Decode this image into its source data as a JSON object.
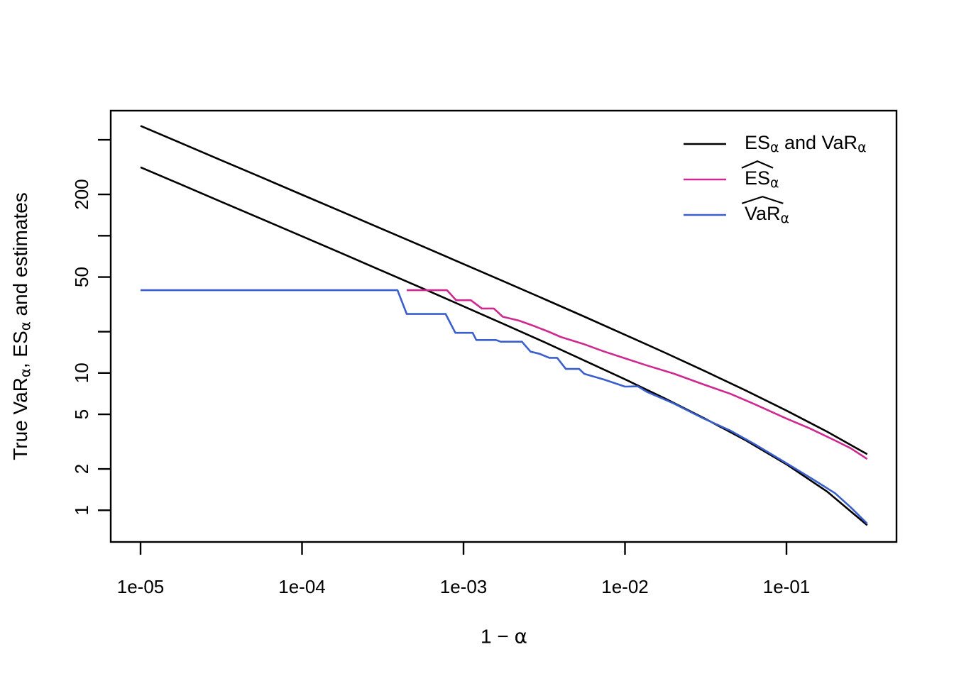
{
  "figure": {
    "background": "#ffffff",
    "axis_color": "#000000",
    "has_title": false
  },
  "axes": {
    "xlabel_segments": [
      {
        "text": "1 − "
      },
      {
        "text": "α",
        "greek": true
      }
    ],
    "ylabel_segments": [
      {
        "text": "True VaR"
      },
      {
        "text": "α",
        "sub": true,
        "greek": true
      },
      {
        "text": ", ES"
      },
      {
        "text": "α",
        "sub": true,
        "greek": true
      },
      {
        "text": " and estimates"
      }
    ]
  },
  "legend": {
    "items": [
      {
        "color": "#000000",
        "segments": [
          {
            "text": "ES"
          },
          {
            "text": "α",
            "sub": true,
            "greek": true
          },
          {
            "text": " and VaR"
          },
          {
            "text": "α",
            "sub": true,
            "greek": true
          }
        ]
      },
      {
        "color": "#CD2990",
        "segments": [
          {
            "text": "ES",
            "hat": true
          },
          {
            "text": "α",
            "sub": true,
            "greek": true
          }
        ]
      },
      {
        "color": "#3A5FCD",
        "segments": [
          {
            "text": "VaR",
            "hat": true
          },
          {
            "text": "α",
            "sub": true,
            "greek": true
          }
        ]
      }
    ]
  },
  "chart_data": {
    "type": "line",
    "title": "",
    "xlabel": "1 − α",
    "ylabel": "True VaR_α, ES_α and estimates",
    "x_scale": "log",
    "y_scale": "log",
    "xlim": [
      6.5e-06,
      0.48
    ],
    "ylim": [
      0.59,
      830
    ],
    "grid": false,
    "legend_position": "top-right-inside",
    "x_ticks": [
      {
        "v": 1e-05,
        "label": "1e-05"
      },
      {
        "v": 0.0001,
        "label": "1e-04"
      },
      {
        "v": 0.001,
        "label": "1e-03"
      },
      {
        "v": 0.01,
        "label": "1e-02"
      },
      {
        "v": 0.1,
        "label": "1e-01"
      }
    ],
    "y_ticks": [
      {
        "v": 1,
        "label": "1"
      },
      {
        "v": 2,
        "label": "2"
      },
      {
        "v": 5,
        "label": "5"
      },
      {
        "v": 10,
        "label": "10"
      },
      {
        "v": 20,
        "label": ""
      },
      {
        "v": 50,
        "label": "50"
      },
      {
        "v": 100,
        "label": ""
      },
      {
        "v": 200,
        "label": "200"
      },
      {
        "v": 500,
        "label": ""
      }
    ],
    "series": [
      {
        "id": "es-true",
        "name": "ES_α (true, black upper)",
        "color": "#000000",
        "width": 2.6,
        "points": [
          [
            1e-05,
            631.5
          ],
          [
            1.78e-05,
            473.1
          ],
          [
            3.16e-05,
            354.7
          ],
          [
            5.62e-05,
            265.8
          ],
          [
            0.0001,
            199.0
          ],
          [
            0.000178,
            148.9
          ],
          [
            0.000316,
            111.5
          ],
          [
            0.000562,
            83.4
          ],
          [
            0.001,
            62.2
          ],
          [
            0.00178,
            46.4
          ],
          [
            0.00316,
            34.6
          ],
          [
            0.00562,
            25.7
          ],
          [
            0.01,
            19.0
          ],
          [
            0.0178,
            14.0
          ],
          [
            0.0316,
            10.25
          ],
          [
            0.0562,
            7.44
          ],
          [
            0.1,
            5.32
          ],
          [
            0.178,
            3.74
          ],
          [
            0.316,
            2.56
          ]
        ]
      },
      {
        "id": "var-true",
        "name": "VaR_α (true, black lower)",
        "color": "#000000",
        "width": 2.6,
        "points": [
          [
            1e-05,
            315.2
          ],
          [
            1.78e-05,
            236.0
          ],
          [
            3.16e-05,
            176.9
          ],
          [
            5.62e-05,
            132.4
          ],
          [
            0.0001,
            99.0
          ],
          [
            0.000178,
            74.0
          ],
          [
            0.000316,
            55.2
          ],
          [
            0.000562,
            41.2
          ],
          [
            0.001,
            30.6
          ],
          [
            0.00178,
            22.7
          ],
          [
            0.00316,
            16.8
          ],
          [
            0.00562,
            12.3
          ],
          [
            0.01,
            9.0
          ],
          [
            0.0178,
            6.5
          ],
          [
            0.0316,
            4.62
          ],
          [
            0.0562,
            3.22
          ],
          [
            0.1,
            2.16
          ],
          [
            0.178,
            1.37
          ],
          [
            0.316,
            0.778
          ]
        ]
      },
      {
        "id": "es-hat",
        "name": "ES_α estimate",
        "color": "#CD2990",
        "width": 2.6,
        "points": [
          [
            0.000445,
            40.1
          ],
          [
            0.00079,
            40.1
          ],
          [
            0.0009,
            33.9
          ],
          [
            0.00111,
            33.9
          ],
          [
            0.0013,
            29.5
          ],
          [
            0.00154,
            29.5
          ],
          [
            0.00175,
            25.7
          ],
          [
            0.0022,
            24.1
          ],
          [
            0.00276,
            21.9
          ],
          [
            0.0034,
            19.9
          ],
          [
            0.004,
            18.3
          ],
          [
            0.0055,
            16.3
          ],
          [
            0.00735,
            14.4
          ],
          [
            0.01,
            12.8
          ],
          [
            0.0135,
            11.4
          ],
          [
            0.02,
            9.9
          ],
          [
            0.0306,
            8.26
          ],
          [
            0.045,
            7.05
          ],
          [
            0.063,
            5.95
          ],
          [
            0.1,
            4.65
          ],
          [
            0.14,
            3.94
          ],
          [
            0.2,
            3.22
          ],
          [
            0.25,
            2.83
          ],
          [
            0.316,
            2.36
          ]
        ]
      },
      {
        "id": "var-hat",
        "name": "VaR_α estimate",
        "color": "#3A5FCD",
        "width": 2.6,
        "points": [
          [
            1e-05,
            40.1
          ],
          [
            0.00039,
            40.1
          ],
          [
            0.000445,
            26.9
          ],
          [
            0.000775,
            26.9
          ],
          [
            0.00089,
            19.6
          ],
          [
            0.00114,
            19.6
          ],
          [
            0.0012,
            17.4
          ],
          [
            0.00159,
            17.4
          ],
          [
            0.0017,
            16.9
          ],
          [
            0.0023,
            16.9
          ],
          [
            0.0026,
            14.3
          ],
          [
            0.00295,
            13.8
          ],
          [
            0.0034,
            12.9
          ],
          [
            0.0038,
            12.9
          ],
          [
            0.0043,
            10.7
          ],
          [
            0.0052,
            10.7
          ],
          [
            0.0056,
            9.86
          ],
          [
            0.0074,
            8.96
          ],
          [
            0.01,
            7.96
          ],
          [
            0.012,
            8.0
          ],
          [
            0.0136,
            7.3
          ],
          [
            0.02,
            6.0
          ],
          [
            0.03,
            4.72
          ],
          [
            0.045,
            3.8
          ],
          [
            0.063,
            3.05
          ],
          [
            0.1,
            2.2
          ],
          [
            0.14,
            1.73
          ],
          [
            0.2,
            1.33
          ],
          [
            0.25,
            1.05
          ],
          [
            0.316,
            0.8
          ]
        ]
      }
    ]
  }
}
